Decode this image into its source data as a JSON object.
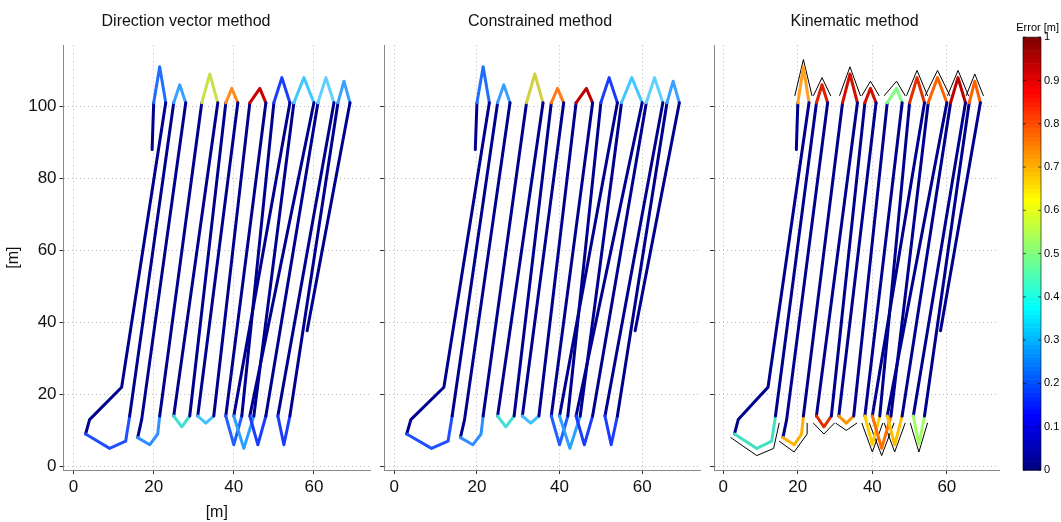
{
  "chart_data": [
    {
      "type": "line",
      "title": "Direction vector method",
      "xlabel": "[m]",
      "ylabel": "[m]",
      "xlim": [
        -2.5,
        74
      ],
      "xticks": [
        0,
        20,
        40,
        60
      ],
      "ylim": [
        -1,
        117
      ],
      "yticks": [
        0,
        20,
        40,
        60,
        80,
        100
      ],
      "grid": true,
      "series": [
        {
          "color": "#00008f",
          "x": [
            19.6,
            20
          ],
          "values": [
            88,
            101
          ]
        },
        {
          "color": "#1f6fff",
          "x": [
            20,
            21.5,
            23
          ],
          "values": [
            101,
            111,
            101
          ]
        },
        {
          "color": "#00008f",
          "x": [
            23,
            12,
            4,
            3
          ],
          "values": [
            101,
            22,
            13,
            9
          ]
        },
        {
          "color": "#1f4fff",
          "x": [
            3,
            9,
            13,
            14
          ],
          "values": [
            9,
            5,
            7,
            14
          ]
        },
        {
          "color": "#00008f",
          "x": [
            14,
            25
          ],
          "values": [
            14,
            101
          ]
        },
        {
          "color": "#3aa0ff",
          "x": [
            25,
            26.5,
            28
          ],
          "values": [
            101,
            106,
            101
          ]
        },
        {
          "color": "#00008f",
          "x": [
            28,
            17,
            16
          ],
          "values": [
            101,
            13,
            8
          ]
        },
        {
          "color": "#2f8fff",
          "x": [
            16,
            19,
            21,
            21.5
          ],
          "values": [
            8,
            6,
            9,
            14
          ]
        },
        {
          "color": "#00008f",
          "x": [
            21.5,
            32
          ],
          "values": [
            14,
            101
          ]
        },
        {
          "color": "#c8e04a",
          "x": [
            32,
            34,
            36
          ],
          "values": [
            101,
            109,
            101
          ]
        },
        {
          "color": "#00008f",
          "x": [
            36,
            25
          ],
          "values": [
            101,
            14
          ]
        },
        {
          "color": "#40e0d0",
          "x": [
            25,
            27,
            29
          ],
          "values": [
            14,
            11,
            14
          ]
        },
        {
          "color": "#00008f",
          "x": [
            29,
            38
          ],
          "values": [
            14,
            101
          ]
        },
        {
          "color": "#ff8c1a",
          "x": [
            38,
            39.5,
            41
          ],
          "values": [
            101,
            105,
            101
          ]
        },
        {
          "color": "#00008f",
          "x": [
            41,
            31
          ],
          "values": [
            101,
            14
          ]
        },
        {
          "color": "#40c0ff",
          "x": [
            31,
            33,
            35
          ],
          "values": [
            14,
            12,
            14
          ]
        },
        {
          "color": "#00008f",
          "x": [
            35,
            44
          ],
          "values": [
            14,
            101
          ]
        },
        {
          "color": "#cc0000",
          "x": [
            44,
            46.5,
            48
          ],
          "values": [
            101,
            105,
            101
          ]
        },
        {
          "color": "#00008f",
          "x": [
            48,
            38
          ],
          "values": [
            101,
            14
          ]
        },
        {
          "color": "#2060ff",
          "x": [
            38,
            40,
            42
          ],
          "values": [
            14,
            6,
            14
          ]
        },
        {
          "color": "#00008f",
          "x": [
            42,
            50
          ],
          "values": [
            14,
            101
          ]
        },
        {
          "color": "#1a3cff",
          "x": [
            50,
            52,
            54
          ],
          "values": [
            101,
            108,
            101
          ]
        },
        {
          "color": "#00008f",
          "x": [
            54,
            40
          ],
          "values": [
            101,
            14
          ]
        },
        {
          "color": "#2aa0ff",
          "x": [
            40,
            42.5,
            45
          ],
          "values": [
            14,
            5,
            14
          ]
        },
        {
          "color": "#00008f",
          "x": [
            45,
            55
          ],
          "values": [
            14,
            101
          ]
        },
        {
          "color": "#40c8ff",
          "x": [
            55,
            57.5,
            60
          ],
          "values": [
            101,
            108,
            101
          ]
        },
        {
          "color": "#00008f",
          "x": [
            60,
            44
          ],
          "values": [
            101,
            14
          ]
        },
        {
          "color": "#1a3cff",
          "x": [
            44,
            46,
            48
          ],
          "values": [
            14,
            6,
            14
          ]
        },
        {
          "color": "#00008f",
          "x": [
            48,
            61
          ],
          "values": [
            14,
            101
          ]
        },
        {
          "color": "#60d0ff",
          "x": [
            61,
            63,
            65
          ],
          "values": [
            101,
            108,
            101
          ]
        },
        {
          "color": "#00008f",
          "x": [
            65,
            51
          ],
          "values": [
            101,
            14
          ]
        },
        {
          "color": "#1a3cff",
          "x": [
            51,
            52.5,
            54
          ],
          "values": [
            14,
            6,
            14
          ]
        },
        {
          "color": "#00008f",
          "x": [
            54,
            66
          ],
          "values": [
            14,
            101
          ]
        },
        {
          "color": "#3aa0ff",
          "x": [
            66,
            67.5,
            69
          ],
          "values": [
            101,
            107,
            101
          ]
        },
        {
          "color": "#00008f",
          "x": [
            69,
            58.3
          ],
          "values": [
            101,
            37.7
          ]
        }
      ]
    },
    {
      "type": "line",
      "title": "Constrained method",
      "xlim": [
        -2.5,
        74
      ],
      "xticks": [
        0,
        20,
        40,
        60
      ],
      "ylim": [
        -1,
        117
      ],
      "yticks": [
        0,
        20,
        40,
        60,
        80,
        100
      ],
      "grid": true,
      "tick_labels": "x",
      "series": [
        {
          "color": "#00008f",
          "x": [
            19.6,
            20
          ],
          "values": [
            88,
            101
          ]
        },
        {
          "color": "#1f6fff",
          "x": [
            20,
            21.5,
            23
          ],
          "values": [
            101,
            111,
            101
          ]
        },
        {
          "color": "#00008f",
          "x": [
            23,
            12,
            4,
            3
          ],
          "values": [
            101,
            22,
            13,
            9
          ]
        },
        {
          "color": "#1f4fff",
          "x": [
            3,
            9,
            13,
            14
          ],
          "values": [
            9,
            5,
            7,
            14
          ]
        },
        {
          "color": "#00008f",
          "x": [
            14,
            25
          ],
          "values": [
            14,
            101
          ]
        },
        {
          "color": "#3aa0ff",
          "x": [
            25,
            26.5,
            28
          ],
          "values": [
            101,
            106,
            101
          ]
        },
        {
          "color": "#00008f",
          "x": [
            28,
            17,
            16
          ],
          "values": [
            101,
            13,
            8
          ]
        },
        {
          "color": "#2f8fff",
          "x": [
            16,
            19,
            21,
            21.5
          ],
          "values": [
            8,
            6,
            9,
            14
          ]
        },
        {
          "color": "#00008f",
          "x": [
            21.5,
            32
          ],
          "values": [
            14,
            101
          ]
        },
        {
          "color": "#d0d040",
          "x": [
            32,
            34,
            36
          ],
          "values": [
            101,
            109,
            101
          ]
        },
        {
          "color": "#00008f",
          "x": [
            36,
            25
          ],
          "values": [
            101,
            14
          ]
        },
        {
          "color": "#40e0d0",
          "x": [
            25,
            27,
            29
          ],
          "values": [
            14,
            11,
            14
          ]
        },
        {
          "color": "#00008f",
          "x": [
            29,
            38
          ],
          "values": [
            14,
            101
          ]
        },
        {
          "color": "#ff7a1a",
          "x": [
            38,
            39.5,
            41
          ],
          "values": [
            101,
            105,
            101
          ]
        },
        {
          "color": "#00008f",
          "x": [
            41,
            31
          ],
          "values": [
            101,
            14
          ]
        },
        {
          "color": "#40c0ff",
          "x": [
            31,
            33,
            35
          ],
          "values": [
            14,
            12,
            14
          ]
        },
        {
          "color": "#00008f",
          "x": [
            35,
            44
          ],
          "values": [
            14,
            101
          ]
        },
        {
          "color": "#c00000",
          "x": [
            44,
            46.5,
            48
          ],
          "values": [
            101,
            105,
            101
          ]
        },
        {
          "color": "#00008f",
          "x": [
            48,
            38
          ],
          "values": [
            101,
            14
          ]
        },
        {
          "color": "#2060ff",
          "x": [
            38,
            40,
            42
          ],
          "values": [
            14,
            6,
            14
          ]
        },
        {
          "color": "#00008f",
          "x": [
            42,
            50
          ],
          "values": [
            14,
            101
          ]
        },
        {
          "color": "#1a3cff",
          "x": [
            50,
            52,
            54
          ],
          "values": [
            101,
            108,
            101
          ]
        },
        {
          "color": "#00008f",
          "x": [
            54,
            40
          ],
          "values": [
            101,
            14
          ]
        },
        {
          "color": "#2aa0ff",
          "x": [
            40,
            42.5,
            45
          ],
          "values": [
            14,
            5,
            14
          ]
        },
        {
          "color": "#00008f",
          "x": [
            45,
            55
          ],
          "values": [
            14,
            101
          ]
        },
        {
          "color": "#40c8ff",
          "x": [
            55,
            57.5,
            60
          ],
          "values": [
            101,
            108,
            101
          ]
        },
        {
          "color": "#00008f",
          "x": [
            60,
            44
          ],
          "values": [
            101,
            14
          ]
        },
        {
          "color": "#1a3cff",
          "x": [
            44,
            46,
            48
          ],
          "values": [
            14,
            6,
            14
          ]
        },
        {
          "color": "#00008f",
          "x": [
            48,
            61
          ],
          "values": [
            14,
            101
          ]
        },
        {
          "color": "#60d0ff",
          "x": [
            61,
            63,
            65
          ],
          "values": [
            101,
            108,
            101
          ]
        },
        {
          "color": "#00008f",
          "x": [
            65,
            51
          ],
          "values": [
            101,
            14
          ]
        },
        {
          "color": "#1a3cff",
          "x": [
            51,
            52.5,
            54
          ],
          "values": [
            14,
            6,
            14
          ]
        },
        {
          "color": "#00008f",
          "x": [
            54,
            66
          ],
          "values": [
            14,
            101
          ]
        },
        {
          "color": "#3aa0ff",
          "x": [
            66,
            67.5,
            69
          ],
          "values": [
            101,
            107,
            101
          ]
        },
        {
          "color": "#00008f",
          "x": [
            69,
            58.3
          ],
          "values": [
            101,
            37.7
          ]
        }
      ]
    },
    {
      "type": "line",
      "title": "Kinematic method",
      "xlim": [
        -2.5,
        74
      ],
      "xticks": [
        0,
        20,
        40,
        60
      ],
      "ylim": [
        -1,
        117
      ],
      "yticks": [
        0,
        20,
        40,
        60,
        80,
        100
      ],
      "grid": true,
      "tick_labels": "x",
      "clabel": "Error [m]",
      "clim": [
        0,
        1
      ],
      "cticks": [
        0,
        0.1,
        0.2,
        0.3,
        0.4,
        0.5,
        0.6,
        0.7,
        0.8,
        0.9,
        1
      ],
      "series": [
        {
          "color": "#000000",
          "x": [
            19.2,
            21.5,
            23.8
          ],
          "values": [
            103,
            113,
            103
          ]
        },
        {
          "color": "#000000",
          "x": [
            2,
            9,
            13.5,
            15
          ],
          "values": [
            8,
            3,
            5,
            12
          ]
        },
        {
          "color": "#000000",
          "x": [
            24.2,
            26.5,
            28.8
          ],
          "values": [
            103,
            108,
            103
          ]
        },
        {
          "color": "#000000",
          "x": [
            15,
            19,
            22.5,
            22.5
          ],
          "values": [
            7,
            4,
            9,
            12
          ]
        },
        {
          "color": "#000000",
          "x": [
            31.2,
            34,
            36.8
          ],
          "values": [
            103,
            111,
            103
          ]
        },
        {
          "color": "#000000",
          "x": [
            24.2,
            27,
            29.8
          ],
          "values": [
            12,
            9,
            12
          ]
        },
        {
          "color": "#000000",
          "x": [
            37.2,
            39.5,
            41.8
          ],
          "values": [
            103,
            107,
            103
          ]
        },
        {
          "color": "#000000",
          "x": [
            30.2,
            33,
            35.8
          ],
          "values": [
            12,
            10,
            12
          ]
        },
        {
          "color": "#000000",
          "x": [
            43.2,
            46.5,
            48.8
          ],
          "values": [
            103,
            107,
            103
          ]
        },
        {
          "color": "#000000",
          "x": [
            37.2,
            40,
            42.8
          ],
          "values": [
            12,
            4,
            12
          ]
        },
        {
          "color": "#000000",
          "x": [
            49.2,
            52,
            54.8
          ],
          "values": [
            103,
            110,
            103
          ]
        },
        {
          "color": "#000000",
          "x": [
            39.2,
            42.5,
            45.8
          ],
          "values": [
            12,
            3,
            12
          ]
        },
        {
          "color": "#000000",
          "x": [
            54.2,
            57.5,
            60.8
          ],
          "values": [
            103,
            110,
            103
          ]
        },
        {
          "color": "#000000",
          "x": [
            43.2,
            46,
            48.8
          ],
          "values": [
            12,
            4,
            12
          ]
        },
        {
          "color": "#000000",
          "x": [
            60.2,
            63,
            65.8
          ],
          "values": [
            103,
            110,
            103
          ]
        },
        {
          "color": "#000000",
          "x": [
            50.2,
            52.5,
            54.8
          ],
          "values": [
            12,
            4,
            12
          ]
        },
        {
          "color": "#000000",
          "x": [
            65.2,
            67.5,
            69.8
          ],
          "values": [
            103,
            109,
            103
          ]
        },
        {
          "color": "#00008f",
          "x": [
            19.6,
            20
          ],
          "values": [
            88,
            101
          ]
        },
        {
          "color": "#ffa020",
          "x": [
            20,
            21.5,
            23
          ],
          "values": [
            101,
            111,
            101
          ]
        },
        {
          "color": "#00008f",
          "x": [
            23,
            12,
            4,
            3
          ],
          "values": [
            101,
            22,
            13,
            9
          ]
        },
        {
          "color": "#40e0c0",
          "x": [
            3,
            9,
            13,
            14
          ],
          "values": [
            9,
            5,
            7,
            14
          ]
        },
        {
          "color": "#00008f",
          "x": [
            14,
            25
          ],
          "values": [
            14,
            101
          ]
        },
        {
          "color": "#e02000",
          "x": [
            25,
            26.5,
            28
          ],
          "values": [
            101,
            106,
            101
          ]
        },
        {
          "color": "#00008f",
          "x": [
            28,
            17,
            16
          ],
          "values": [
            101,
            13,
            8
          ]
        },
        {
          "color": "#ffb000",
          "x": [
            16,
            19,
            21,
            21.5
          ],
          "values": [
            8,
            6,
            9,
            14
          ]
        },
        {
          "color": "#00008f",
          "x": [
            21.5,
            32
          ],
          "values": [
            14,
            101
          ]
        },
        {
          "color": "#d01000",
          "x": [
            32,
            34,
            36
          ],
          "values": [
            101,
            109,
            101
          ]
        },
        {
          "color": "#00008f",
          "x": [
            36,
            25
          ],
          "values": [
            101,
            14
          ]
        },
        {
          "color": "#e03000",
          "x": [
            25,
            27,
            29
          ],
          "values": [
            14,
            11,
            14
          ]
        },
        {
          "color": "#00008f",
          "x": [
            29,
            38
          ],
          "values": [
            14,
            101
          ]
        },
        {
          "color": "#d01000",
          "x": [
            38,
            39.5,
            41
          ],
          "values": [
            101,
            105,
            101
          ]
        },
        {
          "color": "#00008f",
          "x": [
            41,
            31
          ],
          "values": [
            101,
            14
          ]
        },
        {
          "color": "#ff9000",
          "x": [
            31,
            33,
            35
          ],
          "values": [
            14,
            12,
            14
          ]
        },
        {
          "color": "#00008f",
          "x": [
            35,
            44
          ],
          "values": [
            14,
            101
          ]
        },
        {
          "color": "#80ff80",
          "x": [
            44,
            46.5,
            48
          ],
          "values": [
            101,
            105,
            101
          ]
        },
        {
          "color": "#00008f",
          "x": [
            48,
            38
          ],
          "values": [
            101,
            14
          ]
        },
        {
          "color": "#ffd000",
          "x": [
            38,
            40,
            42
          ],
          "values": [
            14,
            6,
            14
          ]
        },
        {
          "color": "#00008f",
          "x": [
            42,
            50
          ],
          "values": [
            14,
            101
          ]
        },
        {
          "color": "#e03000",
          "x": [
            50,
            52,
            54
          ],
          "values": [
            101,
            108,
            101
          ]
        },
        {
          "color": "#00008f",
          "x": [
            54,
            40
          ],
          "values": [
            101,
            14
          ]
        },
        {
          "color": "#ff7000",
          "x": [
            40,
            42.5,
            45
          ],
          "values": [
            14,
            5,
            14
          ]
        },
        {
          "color": "#00008f",
          "x": [
            45,
            55
          ],
          "values": [
            14,
            101
          ]
        },
        {
          "color": "#ff6000",
          "x": [
            55,
            57.5,
            60
          ],
          "values": [
            101,
            108,
            101
          ]
        },
        {
          "color": "#00008f",
          "x": [
            60,
            44
          ],
          "values": [
            101,
            14
          ]
        },
        {
          "color": "#ffc000",
          "x": [
            44,
            46,
            48
          ],
          "values": [
            14,
            6,
            14
          ]
        },
        {
          "color": "#00008f",
          "x": [
            48,
            61
          ],
          "values": [
            14,
            101
          ]
        },
        {
          "color": "#c00000",
          "x": [
            61,
            63,
            65
          ],
          "values": [
            101,
            108,
            101
          ]
        },
        {
          "color": "#00008f",
          "x": [
            65,
            51
          ],
          "values": [
            101,
            14
          ]
        },
        {
          "color": "#a0ff60",
          "x": [
            51,
            52.5,
            54
          ],
          "values": [
            14,
            6,
            14
          ]
        },
        {
          "color": "#00008f",
          "x": [
            54,
            66
          ],
          "values": [
            14,
            101
          ]
        },
        {
          "color": "#ff6000",
          "x": [
            66,
            67.5,
            69
          ],
          "values": [
            101,
            107,
            101
          ]
        },
        {
          "color": "#00008f",
          "x": [
            69,
            58.3
          ],
          "values": [
            101,
            37.7
          ]
        }
      ]
    }
  ]
}
